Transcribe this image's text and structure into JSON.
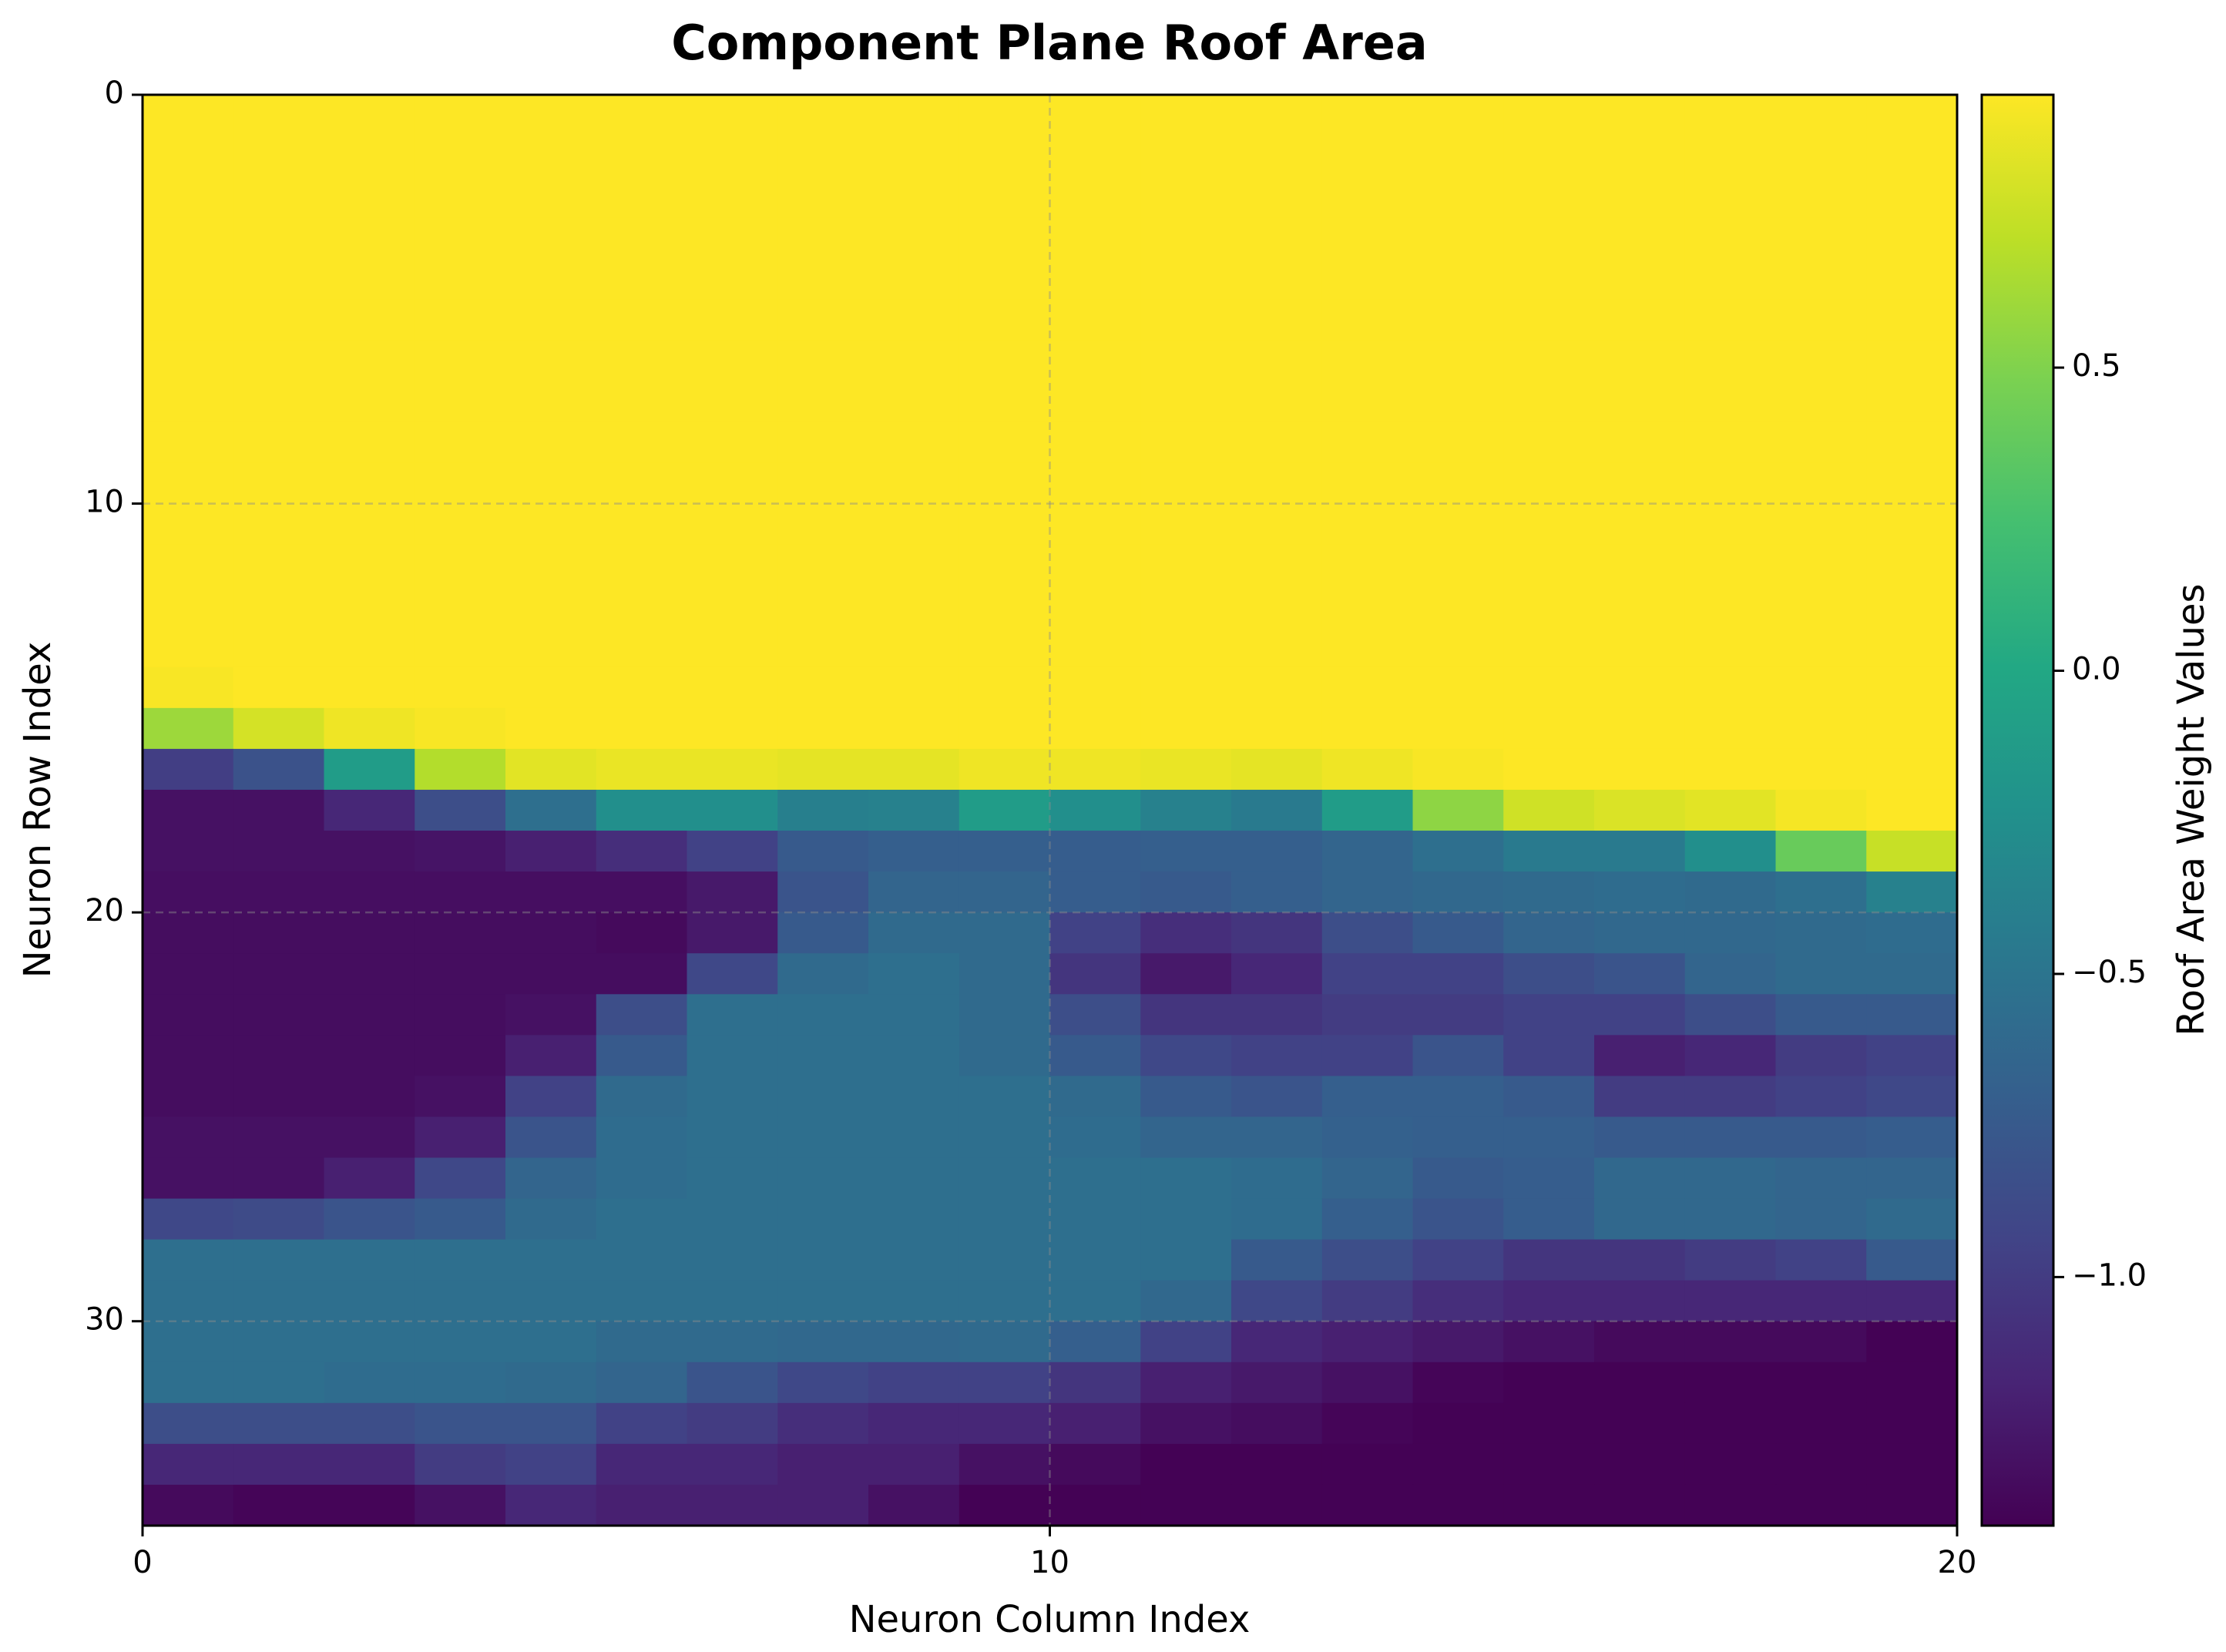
{
  "chart_data": {
    "type": "heatmap",
    "title": "Component Plane Roof Area",
    "xlabel": "Neuron Column Index",
    "ylabel": "Neuron Row Index",
    "colorbar_label": "Roof Area Weight Values",
    "xlim": [
      0,
      20
    ],
    "ylim": [
      35,
      0
    ],
    "x_ticks": [
      0,
      10,
      20
    ],
    "y_ticks": [
      0,
      10,
      20,
      30
    ],
    "colorbar_ticks": [
      -1.0,
      -0.5,
      0.0,
      0.5
    ],
    "colorbar_tick_labels": [
      "−1.0",
      "−0.5",
      "0.0",
      "0.5"
    ],
    "vmin": -1.41,
    "vmax": 0.95,
    "colormap": "viridis",
    "grid": true,
    "rows": 35,
    "cols": 20,
    "values": [
      [
        0.95,
        0.95,
        0.95,
        0.95,
        0.95,
        0.95,
        0.95,
        0.95,
        0.95,
        0.95,
        0.95,
        0.95,
        0.95,
        0.95,
        0.95,
        0.95,
        0.95,
        0.95,
        0.95,
        0.95
      ],
      [
        0.95,
        0.95,
        0.95,
        0.95,
        0.95,
        0.95,
        0.95,
        0.95,
        0.95,
        0.95,
        0.95,
        0.95,
        0.95,
        0.95,
        0.95,
        0.95,
        0.95,
        0.95,
        0.95,
        0.95
      ],
      [
        0.95,
        0.95,
        0.95,
        0.95,
        0.95,
        0.95,
        0.95,
        0.95,
        0.95,
        0.95,
        0.95,
        0.95,
        0.95,
        0.95,
        0.95,
        0.95,
        0.95,
        0.95,
        0.95,
        0.95
      ],
      [
        0.95,
        0.95,
        0.95,
        0.95,
        0.95,
        0.95,
        0.95,
        0.95,
        0.95,
        0.95,
        0.95,
        0.95,
        0.95,
        0.95,
        0.95,
        0.95,
        0.95,
        0.95,
        0.95,
        0.95
      ],
      [
        0.95,
        0.95,
        0.95,
        0.95,
        0.95,
        0.95,
        0.95,
        0.95,
        0.95,
        0.95,
        0.95,
        0.95,
        0.95,
        0.95,
        0.95,
        0.95,
        0.95,
        0.95,
        0.95,
        0.95
      ],
      [
        0.95,
        0.95,
        0.95,
        0.95,
        0.95,
        0.95,
        0.95,
        0.95,
        0.95,
        0.95,
        0.95,
        0.95,
        0.95,
        0.95,
        0.95,
        0.95,
        0.95,
        0.95,
        0.95,
        0.95
      ],
      [
        0.95,
        0.95,
        0.95,
        0.95,
        0.95,
        0.95,
        0.95,
        0.95,
        0.95,
        0.95,
        0.95,
        0.95,
        0.95,
        0.95,
        0.95,
        0.95,
        0.95,
        0.95,
        0.95,
        0.95
      ],
      [
        0.95,
        0.95,
        0.95,
        0.95,
        0.95,
        0.95,
        0.95,
        0.95,
        0.95,
        0.95,
        0.95,
        0.95,
        0.95,
        0.95,
        0.95,
        0.95,
        0.95,
        0.95,
        0.95,
        0.95
      ],
      [
        0.95,
        0.95,
        0.95,
        0.95,
        0.95,
        0.95,
        0.95,
        0.95,
        0.95,
        0.95,
        0.95,
        0.95,
        0.95,
        0.95,
        0.95,
        0.95,
        0.95,
        0.95,
        0.95,
        0.95
      ],
      [
        0.95,
        0.95,
        0.95,
        0.95,
        0.95,
        0.95,
        0.95,
        0.95,
        0.95,
        0.95,
        0.95,
        0.95,
        0.95,
        0.95,
        0.95,
        0.95,
        0.95,
        0.95,
        0.95,
        0.95
      ],
      [
        0.95,
        0.95,
        0.95,
        0.95,
        0.95,
        0.95,
        0.95,
        0.95,
        0.95,
        0.95,
        0.95,
        0.95,
        0.95,
        0.95,
        0.95,
        0.95,
        0.95,
        0.95,
        0.95,
        0.95
      ],
      [
        0.95,
        0.95,
        0.95,
        0.95,
        0.95,
        0.95,
        0.95,
        0.95,
        0.95,
        0.95,
        0.95,
        0.95,
        0.95,
        0.95,
        0.95,
        0.95,
        0.95,
        0.95,
        0.95,
        0.95
      ],
      [
        0.95,
        0.95,
        0.95,
        0.95,
        0.95,
        0.95,
        0.95,
        0.95,
        0.95,
        0.95,
        0.95,
        0.95,
        0.95,
        0.95,
        0.95,
        0.95,
        0.95,
        0.95,
        0.95,
        0.95
      ],
      [
        0.95,
        0.95,
        0.95,
        0.95,
        0.95,
        0.95,
        0.95,
        0.95,
        0.95,
        0.95,
        0.95,
        0.95,
        0.95,
        0.95,
        0.95,
        0.95,
        0.95,
        0.95,
        0.95,
        0.95
      ],
      [
        0.93,
        0.95,
        0.95,
        0.95,
        0.95,
        0.95,
        0.95,
        0.95,
        0.95,
        0.95,
        0.95,
        0.95,
        0.95,
        0.95,
        0.95,
        0.95,
        0.95,
        0.95,
        0.95,
        0.95
      ],
      [
        0.6,
        0.8,
        0.9,
        0.93,
        0.95,
        0.95,
        0.95,
        0.95,
        0.95,
        0.95,
        0.95,
        0.95,
        0.95,
        0.95,
        0.95,
        0.95,
        0.95,
        0.95,
        0.95,
        0.95
      ],
      [
        -0.98,
        -0.82,
        -0.12,
        0.68,
        0.85,
        0.88,
        0.88,
        0.86,
        0.86,
        0.9,
        0.9,
        0.88,
        0.86,
        0.9,
        0.93,
        0.95,
        0.95,
        0.95,
        0.95,
        0.95
      ],
      [
        -1.3,
        -1.3,
        -1.15,
        -0.85,
        -0.55,
        -0.25,
        -0.25,
        -0.4,
        -0.38,
        -0.12,
        -0.25,
        -0.38,
        -0.45,
        -0.12,
        0.55,
        0.78,
        0.82,
        0.85,
        0.92,
        0.95
      ],
      [
        -1.3,
        -1.3,
        -1.3,
        -1.28,
        -1.2,
        -1.1,
        -0.95,
        -0.75,
        -0.7,
        -0.7,
        -0.72,
        -0.7,
        -0.7,
        -0.65,
        -0.55,
        -0.45,
        -0.45,
        -0.25,
        0.4,
        0.75
      ],
      [
        -1.32,
        -1.32,
        -1.32,
        -1.32,
        -1.32,
        -1.32,
        -1.25,
        -0.8,
        -0.65,
        -0.65,
        -0.72,
        -0.75,
        -0.7,
        -0.65,
        -0.62,
        -0.6,
        -0.58,
        -0.6,
        -0.55,
        -0.38
      ],
      [
        -1.33,
        -1.33,
        -1.33,
        -1.33,
        -1.33,
        -1.35,
        -1.25,
        -0.75,
        -0.6,
        -0.6,
        -0.95,
        -1.1,
        -1.05,
        -0.85,
        -0.75,
        -0.65,
        -0.62,
        -0.62,
        -0.6,
        -0.58
      ],
      [
        -1.33,
        -1.33,
        -1.33,
        -1.33,
        -1.33,
        -1.33,
        -0.9,
        -0.6,
        -0.55,
        -0.6,
        -1.05,
        -1.25,
        -1.15,
        -0.95,
        -0.95,
        -0.85,
        -0.8,
        -0.65,
        -0.6,
        -0.6
      ],
      [
        -1.33,
        -1.33,
        -1.33,
        -1.33,
        -1.3,
        -0.85,
        -0.55,
        -0.55,
        -0.55,
        -0.6,
        -0.85,
        -1.05,
        -1.05,
        -1.0,
        -1.0,
        -0.95,
        -0.95,
        -0.85,
        -0.75,
        -0.75
      ],
      [
        -1.33,
        -1.33,
        -1.33,
        -1.33,
        -1.2,
        -0.75,
        -0.55,
        -0.55,
        -0.55,
        -0.6,
        -0.75,
        -0.9,
        -0.95,
        -0.95,
        -0.8,
        -0.95,
        -1.2,
        -1.15,
        -1.0,
        -0.95
      ],
      [
        -1.33,
        -1.33,
        -1.33,
        -1.3,
        -0.95,
        -0.6,
        -0.55,
        -0.55,
        -0.55,
        -0.55,
        -0.6,
        -0.75,
        -0.8,
        -0.7,
        -0.7,
        -0.75,
        -1.0,
        -1.0,
        -0.95,
        -0.9
      ],
      [
        -1.3,
        -1.3,
        -1.3,
        -1.2,
        -0.8,
        -0.58,
        -0.55,
        -0.55,
        -0.55,
        -0.55,
        -0.58,
        -0.65,
        -0.65,
        -0.68,
        -0.7,
        -0.7,
        -0.75,
        -0.75,
        -0.75,
        -0.72
      ],
      [
        -1.3,
        -1.3,
        -1.2,
        -0.9,
        -0.65,
        -0.58,
        -0.55,
        -0.55,
        -0.55,
        -0.55,
        -0.55,
        -0.55,
        -0.58,
        -0.65,
        -0.75,
        -0.72,
        -0.62,
        -0.62,
        -0.65,
        -0.65
      ],
      [
        -0.9,
        -0.88,
        -0.8,
        -0.75,
        -0.6,
        -0.55,
        -0.55,
        -0.55,
        -0.55,
        -0.55,
        -0.55,
        -0.55,
        -0.58,
        -0.7,
        -0.8,
        -0.72,
        -0.62,
        -0.62,
        -0.65,
        -0.6
      ],
      [
        -0.55,
        -0.55,
        -0.55,
        -0.55,
        -0.55,
        -0.55,
        -0.55,
        -0.55,
        -0.55,
        -0.55,
        -0.55,
        -0.55,
        -0.75,
        -0.85,
        -0.95,
        -1.05,
        -1.05,
        -1.0,
        -0.95,
        -0.75
      ],
      [
        -0.55,
        -0.55,
        -0.55,
        -0.55,
        -0.55,
        -0.55,
        -0.55,
        -0.55,
        -0.55,
        -0.55,
        -0.55,
        -0.62,
        -0.9,
        -1.0,
        -1.1,
        -1.15,
        -1.15,
        -1.15,
        -1.15,
        -1.15
      ],
      [
        -0.55,
        -0.55,
        -0.55,
        -0.55,
        -0.55,
        -0.6,
        -0.6,
        -0.62,
        -0.62,
        -0.6,
        -0.7,
        -0.95,
        -1.15,
        -1.2,
        -1.25,
        -1.3,
        -1.35,
        -1.35,
        -1.35,
        -1.4
      ],
      [
        -0.55,
        -0.55,
        -0.58,
        -0.58,
        -0.6,
        -0.65,
        -0.8,
        -0.9,
        -0.95,
        -0.95,
        -1.05,
        -1.2,
        -1.25,
        -1.3,
        -1.38,
        -1.4,
        -1.4,
        -1.4,
        -1.4,
        -1.4
      ],
      [
        -0.85,
        -0.85,
        -0.85,
        -0.8,
        -0.8,
        -0.95,
        -1.0,
        -1.1,
        -1.15,
        -1.15,
        -1.2,
        -1.3,
        -1.33,
        -1.38,
        -1.4,
        -1.4,
        -1.4,
        -1.4,
        -1.4,
        -1.4
      ],
      [
        -1.15,
        -1.15,
        -1.15,
        -1.0,
        -0.95,
        -1.15,
        -1.15,
        -1.2,
        -1.2,
        -1.3,
        -1.35,
        -1.4,
        -1.4,
        -1.4,
        -1.4,
        -1.4,
        -1.4,
        -1.4,
        -1.4,
        -1.4
      ],
      [
        -1.35,
        -1.38,
        -1.38,
        -1.3,
        -1.15,
        -1.2,
        -1.2,
        -1.2,
        -1.3,
        -1.4,
        -1.4,
        -1.4,
        -1.4,
        -1.4,
        -1.4,
        -1.4,
        -1.4,
        -1.4,
        -1.4,
        -1.4
      ]
    ]
  }
}
